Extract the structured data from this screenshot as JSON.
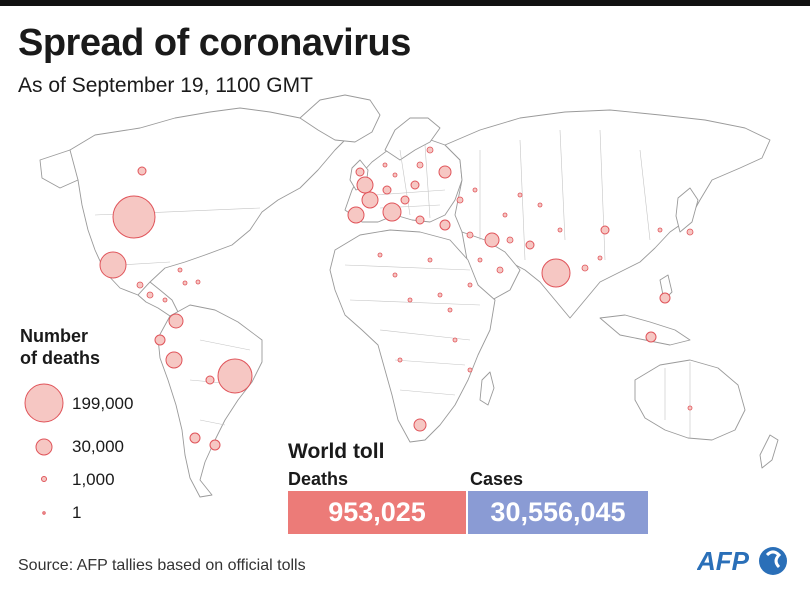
{
  "header": {
    "title": "Spread of coronavirus",
    "subtitle": "As of September 19, 1100 GMT"
  },
  "legend": {
    "title_line1": "Number",
    "title_line2": "of deaths",
    "items": [
      {
        "label": "199,000",
        "value": 199000
      },
      {
        "label": "30,000",
        "value": 30000
      },
      {
        "label": "1,000",
        "value": 1000
      },
      {
        "label": "1",
        "value": 1
      }
    ]
  },
  "world_toll": {
    "title": "World toll",
    "deaths_label": "Deaths",
    "deaths_value": "953,025",
    "cases_label": "Cases",
    "cases_value": "30,556,045"
  },
  "source": "Source: AFP tallies based on official tolls",
  "logo_text": "AFP",
  "colors": {
    "bubble_fill": "#f6c7c3",
    "bubble_stroke": "#e0545a",
    "deaths_box": "#ec7b78",
    "cases_box": "#8a9bd4",
    "land_stroke": "#9a9a9a",
    "logo_blue": "#2a6fb8"
  }
}
